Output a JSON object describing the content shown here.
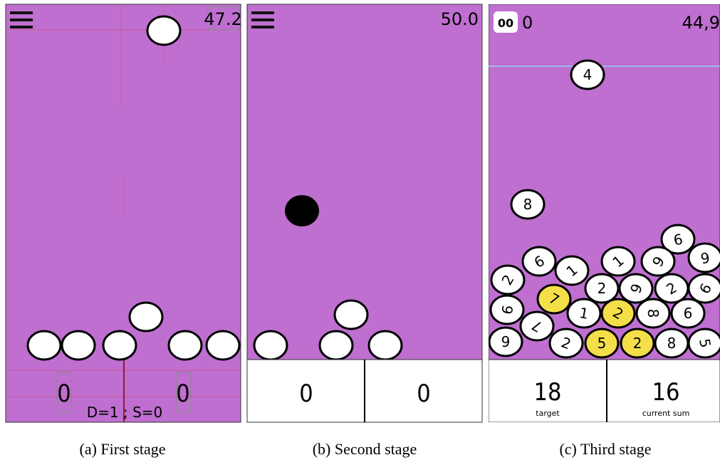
{
  "panels": [
    {
      "caption": "(a) First stage",
      "score": "47.2",
      "counters": [
        "0",
        "0"
      ],
      "status": "D=1 ; S=0"
    },
    {
      "caption": "(b) Second stage",
      "score": "50.0",
      "counters": [
        "0",
        "0"
      ]
    },
    {
      "caption": "(c) Third stage",
      "pause_icon": "00",
      "count": "0",
      "score": "44,9",
      "balls": [
        {
          "label": "4",
          "selected": false
        },
        {
          "label": "8",
          "selected": false
        },
        {
          "label": "9",
          "selected": false
        },
        {
          "label": "9",
          "selected": false
        },
        {
          "label": "1",
          "selected": false
        },
        {
          "label": "6",
          "selected": false
        },
        {
          "label": "6",
          "selected": false
        },
        {
          "label": "2",
          "selected": false
        },
        {
          "label": "1",
          "selected": false
        },
        {
          "label": "2",
          "selected": false
        },
        {
          "label": "6",
          "selected": false
        },
        {
          "label": "2",
          "selected": false
        },
        {
          "label": "9",
          "selected": false
        },
        {
          "label": "7",
          "selected": true
        },
        {
          "label": "9",
          "selected": false
        },
        {
          "label": "1",
          "selected": false
        },
        {
          "label": "2",
          "selected": true
        },
        {
          "label": "8",
          "selected": false
        },
        {
          "label": "6",
          "selected": false
        },
        {
          "label": "7",
          "selected": false
        },
        {
          "label": "9",
          "selected": false
        },
        {
          "label": "2",
          "selected": false
        },
        {
          "label": "5",
          "selected": true
        },
        {
          "label": "2",
          "selected": true
        },
        {
          "label": "8",
          "selected": false
        },
        {
          "label": "5",
          "selected": false
        }
      ],
      "target": "18",
      "target_label": "target",
      "current_sum": "16",
      "current_sum_label": "current sum"
    }
  ]
}
